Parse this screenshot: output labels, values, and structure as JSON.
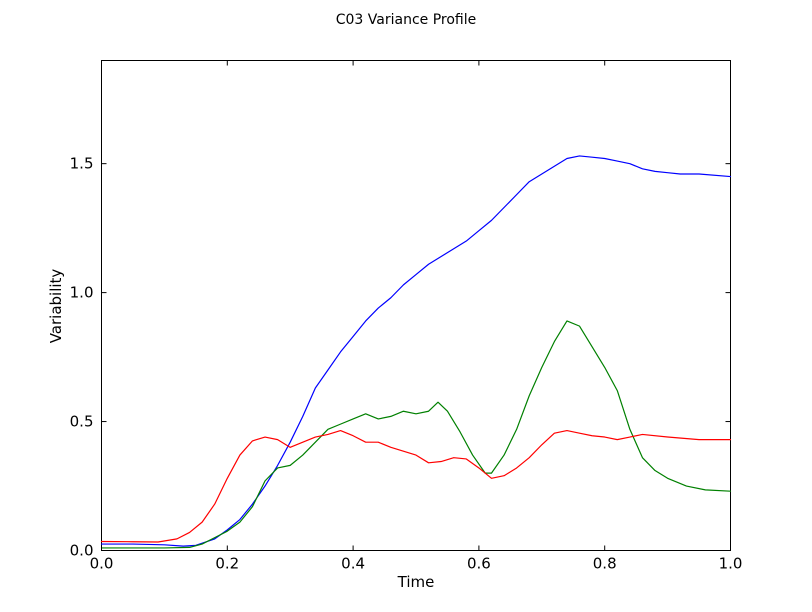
{
  "chart_data": {
    "type": "line",
    "title": "C03 Variance Profile",
    "xlabel": "Time",
    "ylabel": "Variability",
    "xlim": [
      0.0,
      1.0
    ],
    "ylim": [
      0.0,
      1.9
    ],
    "grid": false,
    "legend": "none",
    "xticks": [
      0.0,
      0.2,
      0.4,
      0.6,
      0.8,
      1.0
    ],
    "xtick_labels": [
      "0.0",
      "0.2",
      "0.4",
      "0.6",
      "0.8",
      "1.0"
    ],
    "yticks": [
      0.0,
      0.5,
      1.0,
      1.5
    ],
    "ytick_labels": [
      "0.0",
      "0.5",
      "1.0",
      "1.5"
    ],
    "series": [
      {
        "name": "blue",
        "color": "#0000ff",
        "x": [
          0.0,
          0.05,
          0.1,
          0.13,
          0.15,
          0.18,
          0.2,
          0.22,
          0.24,
          0.26,
          0.28,
          0.3,
          0.32,
          0.34,
          0.36,
          0.38,
          0.4,
          0.42,
          0.44,
          0.46,
          0.48,
          0.5,
          0.52,
          0.54,
          0.56,
          0.58,
          0.6,
          0.62,
          0.64,
          0.66,
          0.68,
          0.7,
          0.72,
          0.74,
          0.76,
          0.78,
          0.8,
          0.82,
          0.84,
          0.86,
          0.88,
          0.9,
          0.92,
          0.95,
          1.0
        ],
        "y": [
          0.025,
          0.025,
          0.022,
          0.017,
          0.02,
          0.045,
          0.08,
          0.12,
          0.18,
          0.25,
          0.33,
          0.42,
          0.52,
          0.63,
          0.7,
          0.77,
          0.83,
          0.89,
          0.94,
          0.98,
          1.03,
          1.07,
          1.11,
          1.14,
          1.17,
          1.2,
          1.24,
          1.28,
          1.33,
          1.38,
          1.43,
          1.46,
          1.49,
          1.52,
          1.53,
          1.525,
          1.52,
          1.51,
          1.5,
          1.48,
          1.47,
          1.465,
          1.46,
          1.46,
          1.45
        ]
      },
      {
        "name": "green",
        "color": "#008000",
        "x": [
          0.0,
          0.05,
          0.1,
          0.14,
          0.16,
          0.18,
          0.2,
          0.22,
          0.24,
          0.26,
          0.28,
          0.3,
          0.32,
          0.34,
          0.36,
          0.38,
          0.4,
          0.42,
          0.44,
          0.46,
          0.48,
          0.5,
          0.52,
          0.535,
          0.55,
          0.57,
          0.59,
          0.61,
          0.62,
          0.64,
          0.66,
          0.68,
          0.7,
          0.72,
          0.74,
          0.76,
          0.78,
          0.8,
          0.82,
          0.84,
          0.86,
          0.88,
          0.9,
          0.93,
          0.96,
          1.0
        ],
        "y": [
          0.01,
          0.01,
          0.01,
          0.012,
          0.025,
          0.05,
          0.075,
          0.11,
          0.17,
          0.27,
          0.32,
          0.33,
          0.37,
          0.42,
          0.47,
          0.49,
          0.51,
          0.53,
          0.51,
          0.52,
          0.54,
          0.53,
          0.54,
          0.575,
          0.54,
          0.46,
          0.37,
          0.3,
          0.3,
          0.37,
          0.47,
          0.6,
          0.71,
          0.81,
          0.89,
          0.87,
          0.79,
          0.71,
          0.62,
          0.47,
          0.36,
          0.31,
          0.28,
          0.25,
          0.235,
          0.23
        ]
      },
      {
        "name": "red",
        "color": "#ff0000",
        "x": [
          0.0,
          0.05,
          0.09,
          0.12,
          0.14,
          0.16,
          0.18,
          0.2,
          0.22,
          0.24,
          0.26,
          0.28,
          0.3,
          0.32,
          0.34,
          0.36,
          0.38,
          0.4,
          0.42,
          0.44,
          0.46,
          0.48,
          0.5,
          0.52,
          0.54,
          0.56,
          0.58,
          0.6,
          0.62,
          0.64,
          0.66,
          0.68,
          0.7,
          0.72,
          0.74,
          0.76,
          0.78,
          0.8,
          0.82,
          0.84,
          0.86,
          0.9,
          0.95,
          1.0
        ],
        "y": [
          0.035,
          0.034,
          0.033,
          0.045,
          0.07,
          0.11,
          0.18,
          0.28,
          0.37,
          0.425,
          0.44,
          0.43,
          0.4,
          0.42,
          0.44,
          0.45,
          0.465,
          0.445,
          0.42,
          0.42,
          0.4,
          0.385,
          0.37,
          0.34,
          0.345,
          0.36,
          0.355,
          0.32,
          0.28,
          0.29,
          0.32,
          0.36,
          0.41,
          0.455,
          0.465,
          0.455,
          0.445,
          0.44,
          0.43,
          0.44,
          0.45,
          0.44,
          0.43,
          0.43
        ]
      }
    ]
  }
}
